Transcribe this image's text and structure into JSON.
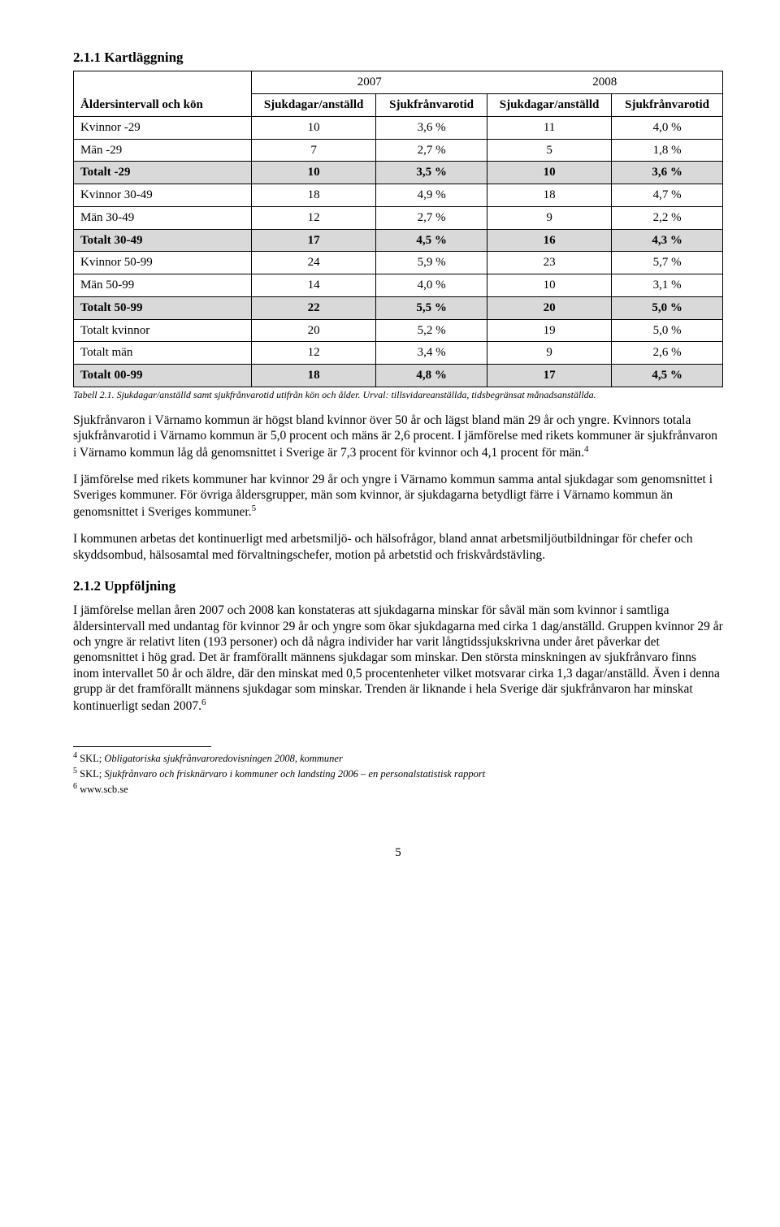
{
  "section_title": "2.1.1 Kartläggning",
  "year_headers": [
    "2007",
    "2008"
  ],
  "header_label": "Åldersintervall och kön",
  "subheaders": [
    "Sjukdagar/anställd",
    "Sjukfrånvarotid",
    "Sjukdagar/anställd",
    "Sjukfrånvarotid"
  ],
  "rows": [
    {
      "label": "Kvinnor -29",
      "a": "10",
      "b": "3,6 %",
      "c": "11",
      "d": "4,0 %",
      "hl": false
    },
    {
      "label": "Män -29",
      "a": "7",
      "b": "2,7 %",
      "c": "5",
      "d": "1,8 %",
      "hl": false
    },
    {
      "label": "Totalt -29",
      "a": "10",
      "b": "3,5 %",
      "c": "10",
      "d": "3,6 %",
      "hl": true
    },
    {
      "label": "Kvinnor 30-49",
      "a": "18",
      "b": "4,9 %",
      "c": "18",
      "d": "4,7 %",
      "hl": false
    },
    {
      "label": "Män 30-49",
      "a": "12",
      "b": "2,7 %",
      "c": "9",
      "d": "2,2 %",
      "hl": false
    },
    {
      "label": "Totalt 30-49",
      "a": "17",
      "b": "4,5 %",
      "c": "16",
      "d": "4,3 %",
      "hl": true
    },
    {
      "label": "Kvinnor 50-99",
      "a": "24",
      "b": "5,9 %",
      "c": "23",
      "d": "5,7 %",
      "hl": false
    },
    {
      "label": "Män 50-99",
      "a": "14",
      "b": "4,0 %",
      "c": "10",
      "d": "3,1 %",
      "hl": false
    },
    {
      "label": "Totalt 50-99",
      "a": "22",
      "b": "5,5 %",
      "c": "20",
      "d": "5,0 %",
      "hl": true
    },
    {
      "label": "Totalt kvinnor",
      "a": "20",
      "b": "5,2 %",
      "c": "19",
      "d": "5,0 %",
      "hl": false
    },
    {
      "label": "Totalt män",
      "a": "12",
      "b": "3,4 %",
      "c": "9",
      "d": "2,6 %",
      "hl": false
    },
    {
      "label": "Totalt 00-99",
      "a": "18",
      "b": "4,8 %",
      "c": "17",
      "d": "4,5 %",
      "hl": true
    }
  ],
  "highlight_color": "#d9d9d9",
  "caption": "Tabell 2.1. Sjukdagar/anställd samt sjukfrånvarotid utifrån kön och ålder. Urval: tillsvidareanställda, tidsbegränsat månadsanställda.",
  "para1_a": "Sjukfrånvaron i Värnamo kommun är högst bland kvinnor över 50 år och lägst bland män 29 år och yngre. Kvinnors totala sjukfrånvarotid i Värnamo kommun är 5,0 procent och mäns är 2,6 procent. I jämförelse med rikets kommuner är sjukfrånvaron i Värnamo kommun låg då genomsnittet i Sverige är 7,3 procent för kvinnor och 4,1 procent för män.",
  "para1_sup": "4",
  "para2_a": "I jämförelse med rikets kommuner har kvinnor 29 år och yngre i Värnamo kommun samma antal sjukdagar som genomsnittet i Sveriges kommuner. För övriga åldersgrupper, män som kvinnor, är sjukdagarna betydligt färre i Värnamo kommun än genomsnittet i Sveriges kommuner.",
  "para2_sup": "5",
  "para3": "I kommunen arbetas det kontinuerligt med arbetsmiljö- och hälsofrågor, bland annat arbetsmiljöutbildningar för chefer och skyddsombud, hälsosamtal med förvaltningschefer, motion på arbetstid och friskvårdstävling.",
  "sub_title": "2.1.2 Uppföljning",
  "para4_a": "I jämförelse mellan åren 2007 och 2008 kan konstateras att sjukdagarna minskar för såväl män som kvinnor i samtliga åldersintervall med undantag för kvinnor 29 år och yngre som ökar sjukdagarna med cirka 1 dag/anställd. Gruppen kvinnor 29 år och yngre är relativt liten (193 personer) och då några individer har varit långtidssjukskrivna under året påverkar det genomsnittet i hög grad. Det är framförallt männens sjukdagar som minskar. Den största minskningen av sjukfrånvaro finns inom intervallet 50 år och äldre, där den minskat med 0,5 procentenheter vilket motsvarar cirka 1,3 dagar/anställd. Även i denna grupp är det framförallt männens sjukdagar som minskar. Trenden är liknande i hela Sverige där sjukfrånvaron har minskat kontinuerligt sedan 2007.",
  "para4_sup": "6",
  "footnotes": [
    {
      "n": "4",
      "pre": "SKL; ",
      "ital": "Obligatoriska sjukfrånvaroredovisningen 2008, kommuner",
      "post": ""
    },
    {
      "n": "5",
      "pre": "SKL; ",
      "ital": "Sjukfrånvaro och frisknärvaro i kommuner och landsting 2006 – en personalstatistisk rapport",
      "post": ""
    },
    {
      "n": "6",
      "pre": "www.scb.se",
      "ital": "",
      "post": ""
    }
  ],
  "page_number": "5"
}
